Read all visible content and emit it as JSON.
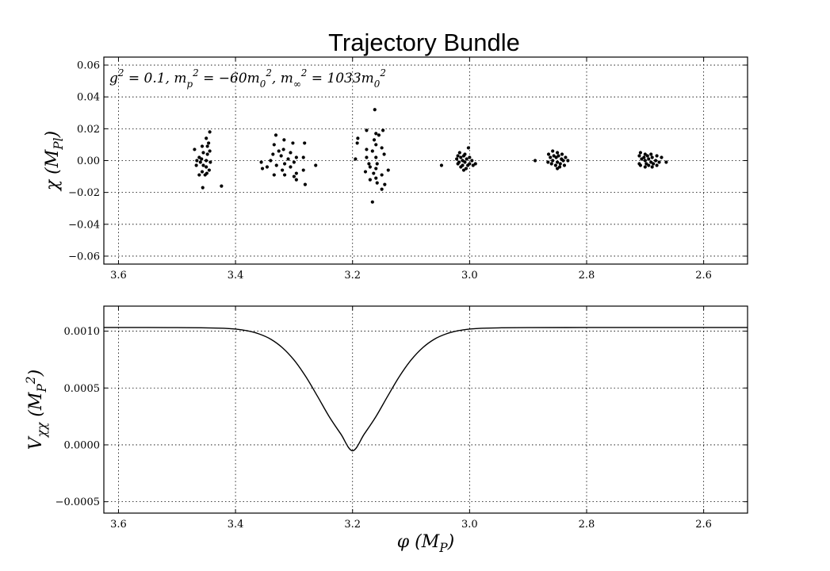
{
  "title": "Trajectory Bundle",
  "chart_data": [
    {
      "type": "scatter",
      "annotation": "g^2 = 0.1, m_p^2 = -60m_0^2, m_∞^2 = 1033m_0^2",
      "annotation_parts": [
        "g",
        "2",
        " = 0.1, ",
        "m",
        "p",
        "2",
        " = −60",
        "m",
        "0",
        "2",
        ", ",
        "m",
        "∞",
        "2",
        " = 1033",
        "m",
        "0",
        "2"
      ],
      "xlabel": "",
      "ylabel": "χ (M_Pl)",
      "ylabel_parts": [
        "χ (",
        "M",
        "Pl",
        ")"
      ],
      "xlim": [
        3.625,
        2.525
      ],
      "ylim": [
        -0.065,
        0.065
      ],
      "xticks": [
        3.6,
        3.4,
        3.2,
        3.0,
        2.8,
        2.6
      ],
      "xtick_labels": [
        "3.6",
        "3.4",
        "3.2",
        "3.0",
        "2.8",
        "2.6"
      ],
      "yticks": [
        -0.06,
        -0.04,
        -0.02,
        0.0,
        0.02,
        0.04,
        0.06
      ],
      "ytick_labels": [
        "−0.06",
        "−0.04",
        "−0.02",
        "0.00",
        "0.02",
        "0.04",
        "0.06"
      ],
      "grid": true,
      "points": [
        {
          "x": 3.444,
          "y": 0.018
        },
        {
          "x": 3.45,
          "y": 0.014
        },
        {
          "x": 3.446,
          "y": 0.011
        },
        {
          "x": 3.457,
          "y": 0.009
        },
        {
          "x": 3.448,
          "y": 0.009
        },
        {
          "x": 3.47,
          "y": 0.007
        },
        {
          "x": 3.444,
          "y": 0.006
        },
        {
          "x": 3.455,
          "y": 0.005
        },
        {
          "x": 3.448,
          "y": 0.004
        },
        {
          "x": 3.462,
          "y": 0.002
        },
        {
          "x": 3.458,
          "y": 0.001
        },
        {
          "x": 3.466,
          "y": 0.0
        },
        {
          "x": 3.45,
          "y": 0.0
        },
        {
          "x": 3.443,
          "y": -0.001
        },
        {
          "x": 3.46,
          "y": -0.001
        },
        {
          "x": 3.455,
          "y": -0.003
        },
        {
          "x": 3.467,
          "y": -0.003
        },
        {
          "x": 3.45,
          "y": -0.004
        },
        {
          "x": 3.445,
          "y": -0.006
        },
        {
          "x": 3.457,
          "y": -0.007
        },
        {
          "x": 3.449,
          "y": -0.008
        },
        {
          "x": 3.462,
          "y": -0.009
        },
        {
          "x": 3.452,
          "y": -0.009
        },
        {
          "x": 3.424,
          "y": -0.016
        },
        {
          "x": 3.456,
          "y": -0.017
        },
        {
          "x": 3.331,
          "y": 0.016
        },
        {
          "x": 3.317,
          "y": 0.013
        },
        {
          "x": 3.334,
          "y": 0.01
        },
        {
          "x": 3.302,
          "y": 0.011
        },
        {
          "x": 3.282,
          "y": 0.011
        },
        {
          "x": 3.318,
          "y": 0.007
        },
        {
          "x": 3.326,
          "y": 0.006
        },
        {
          "x": 3.306,
          "y": 0.005
        },
        {
          "x": 3.336,
          "y": 0.004
        },
        {
          "x": 3.322,
          "y": 0.003
        },
        {
          "x": 3.296,
          "y": 0.002
        },
        {
          "x": 3.284,
          "y": 0.002
        },
        {
          "x": 3.31,
          "y": 0.001
        },
        {
          "x": 3.34,
          "y": 0.0
        },
        {
          "x": 3.356,
          "y": -0.001
        },
        {
          "x": 3.3,
          "y": -0.001
        },
        {
          "x": 3.316,
          "y": -0.002
        },
        {
          "x": 3.33,
          "y": -0.003
        },
        {
          "x": 3.346,
          "y": -0.004
        },
        {
          "x": 3.263,
          "y": -0.003
        },
        {
          "x": 3.306,
          "y": -0.004
        },
        {
          "x": 3.354,
          "y": -0.005
        },
        {
          "x": 3.32,
          "y": -0.006
        },
        {
          "x": 3.284,
          "y": -0.006
        },
        {
          "x": 3.296,
          "y": -0.008
        },
        {
          "x": 3.334,
          "y": -0.009
        },
        {
          "x": 3.316,
          "y": -0.009
        },
        {
          "x": 3.3,
          "y": -0.01
        },
        {
          "x": 3.296,
          "y": -0.012
        },
        {
          "x": 3.281,
          "y": -0.015
        },
        {
          "x": 3.162,
          "y": 0.032
        },
        {
          "x": 3.176,
          "y": 0.019
        },
        {
          "x": 3.148,
          "y": 0.019
        },
        {
          "x": 3.16,
          "y": 0.017
        },
        {
          "x": 3.155,
          "y": 0.016
        },
        {
          "x": 3.191,
          "y": 0.014
        },
        {
          "x": 3.163,
          "y": 0.013
        },
        {
          "x": 3.192,
          "y": 0.011
        },
        {
          "x": 3.16,
          "y": 0.01
        },
        {
          "x": 3.15,
          "y": 0.008
        },
        {
          "x": 3.176,
          "y": 0.007
        },
        {
          "x": 3.166,
          "y": 0.006
        },
        {
          "x": 3.146,
          "y": 0.004
        },
        {
          "x": 3.176,
          "y": 0.002
        },
        {
          "x": 3.16,
          "y": 0.002
        },
        {
          "x": 3.195,
          "y": 0.001
        },
        {
          "x": 3.172,
          "y": -0.002
        },
        {
          "x": 3.158,
          "y": -0.002
        },
        {
          "x": 3.17,
          "y": -0.004
        },
        {
          "x": 3.16,
          "y": -0.005
        },
        {
          "x": 3.139,
          "y": -0.006
        },
        {
          "x": 3.178,
          "y": -0.007
        },
        {
          "x": 3.164,
          "y": -0.008
        },
        {
          "x": 3.15,
          "y": -0.009
        },
        {
          "x": 3.16,
          "y": -0.011
        },
        {
          "x": 3.17,
          "y": -0.012
        },
        {
          "x": 3.158,
          "y": -0.014
        },
        {
          "x": 3.145,
          "y": -0.015
        },
        {
          "x": 3.15,
          "y": -0.018
        },
        {
          "x": 3.166,
          "y": -0.026
        },
        {
          "x": 3.002,
          "y": 0.008
        },
        {
          "x": 3.017,
          "y": 0.005
        },
        {
          "x": 3.008,
          "y": 0.004
        },
        {
          "x": 3.02,
          "y": 0.003
        },
        {
          "x": 3.01,
          "y": 0.003
        },
        {
          "x": 3.0,
          "y": 0.002
        },
        {
          "x": 3.015,
          "y": 0.002
        },
        {
          "x": 3.022,
          "y": 0.001
        },
        {
          "x": 3.005,
          "y": 0.001
        },
        {
          "x": 3.012,
          "y": 0.0
        },
        {
          "x": 2.996,
          "y": 0.0
        },
        {
          "x": 3.018,
          "y": -0.001
        },
        {
          "x": 3.008,
          "y": -0.001
        },
        {
          "x": 3.0,
          "y": -0.002
        },
        {
          "x": 2.99,
          "y": -0.002
        },
        {
          "x": 3.02,
          "y": -0.002
        },
        {
          "x": 3.012,
          "y": -0.003
        },
        {
          "x": 3.048,
          "y": -0.003
        },
        {
          "x": 3.003,
          "y": -0.003
        },
        {
          "x": 2.994,
          "y": -0.003
        },
        {
          "x": 3.015,
          "y": -0.004
        },
        {
          "x": 3.006,
          "y": -0.005
        },
        {
          "x": 3.01,
          "y": -0.006
        },
        {
          "x": 2.858,
          "y": 0.006
        },
        {
          "x": 2.85,
          "y": 0.005
        },
        {
          "x": 2.842,
          "y": 0.004
        },
        {
          "x": 2.865,
          "y": 0.004
        },
        {
          "x": 2.856,
          "y": 0.003
        },
        {
          "x": 2.848,
          "y": 0.003
        },
        {
          "x": 2.836,
          "y": 0.002
        },
        {
          "x": 2.862,
          "y": 0.002
        },
        {
          "x": 2.852,
          "y": 0.002
        },
        {
          "x": 2.843,
          "y": 0.001
        },
        {
          "x": 2.888,
          "y": 0.0
        },
        {
          "x": 2.858,
          "y": 0.0
        },
        {
          "x": 2.84,
          "y": 0.0
        },
        {
          "x": 2.832,
          "y": 0.0
        },
        {
          "x": 2.866,
          "y": -0.001
        },
        {
          "x": 2.85,
          "y": -0.001
        },
        {
          "x": 2.845,
          "y": -0.002
        },
        {
          "x": 2.86,
          "y": -0.002
        },
        {
          "x": 2.838,
          "y": -0.003
        },
        {
          "x": 2.853,
          "y": -0.003
        },
        {
          "x": 2.846,
          "y": -0.004
        },
        {
          "x": 2.85,
          "y": -0.005
        },
        {
          "x": 2.708,
          "y": 0.005
        },
        {
          "x": 2.7,
          "y": 0.004
        },
        {
          "x": 2.69,
          "y": 0.004
        },
        {
          "x": 2.71,
          "y": 0.003
        },
        {
          "x": 2.696,
          "y": 0.003
        },
        {
          "x": 2.68,
          "y": 0.003
        },
        {
          "x": 2.702,
          "y": 0.002
        },
        {
          "x": 2.688,
          "y": 0.002
        },
        {
          "x": 2.672,
          "y": 0.002
        },
        {
          "x": 2.706,
          "y": 0.001
        },
        {
          "x": 2.694,
          "y": 0.001
        },
        {
          "x": 2.682,
          "y": 0.0
        },
        {
          "x": 2.7,
          "y": 0.0
        },
        {
          "x": 2.69,
          "y": -0.001
        },
        {
          "x": 2.676,
          "y": -0.001
        },
        {
          "x": 2.664,
          "y": -0.001
        },
        {
          "x": 2.71,
          "y": -0.002
        },
        {
          "x": 2.698,
          "y": -0.002
        },
        {
          "x": 2.686,
          "y": -0.002
        },
        {
          "x": 2.708,
          "y": -0.003
        },
        {
          "x": 2.694,
          "y": -0.003
        },
        {
          "x": 2.68,
          "y": -0.003
        },
        {
          "x": 2.7,
          "y": -0.004
        },
        {
          "x": 2.688,
          "y": -0.004
        }
      ]
    },
    {
      "type": "line",
      "xlabel": "φ (M_P)",
      "xlabel_parts": [
        "φ (",
        "M",
        "P",
        ")"
      ],
      "ylabel": "V_χχ (M_P^2)",
      "ylabel_parts": [
        "V",
        "χχ",
        " (",
        "M",
        "P",
        "2",
        ")"
      ],
      "xlim": [
        3.625,
        2.525
      ],
      "ylim": [
        -0.0006,
        0.00122
      ],
      "xticks": [
        3.6,
        3.4,
        3.2,
        3.0,
        2.8,
        2.6
      ],
      "xtick_labels": [
        "3.6",
        "3.4",
        "3.2",
        "3.0",
        "2.8",
        "2.6"
      ],
      "yticks": [
        -0.0005,
        0.0,
        0.0005,
        0.001
      ],
      "ytick_labels": [
        "−0.0005",
        "0.0000",
        "0.0005",
        "0.0010"
      ],
      "grid": true,
      "x": [
        3.625,
        3.55,
        3.5,
        3.45,
        3.42,
        3.4,
        3.38,
        3.36,
        3.34,
        3.32,
        3.3,
        3.28,
        3.26,
        3.24,
        3.22,
        3.2,
        3.18,
        3.16,
        3.14,
        3.12,
        3.1,
        3.08,
        3.06,
        3.04,
        3.02,
        3.0,
        2.98,
        2.95,
        2.9,
        2.8,
        2.7,
        2.6,
        2.525
      ],
      "y": [
        0.001032,
        0.001032,
        0.001031,
        0.001029,
        0.001025,
        0.001018,
        0.001003,
        0.000976,
        0.00093,
        0.000855,
        0.000746,
        0.000601,
        0.000428,
        0.000249,
        9.5e-05,
        -5.2e-05,
        9.5e-05,
        0.000249,
        0.000428,
        0.000601,
        0.000746,
        0.000855,
        0.00093,
        0.000976,
        0.001003,
        0.001018,
        0.001025,
        0.001029,
        0.001031,
        0.001032,
        0.001032,
        0.001032,
        0.001032
      ]
    }
  ]
}
